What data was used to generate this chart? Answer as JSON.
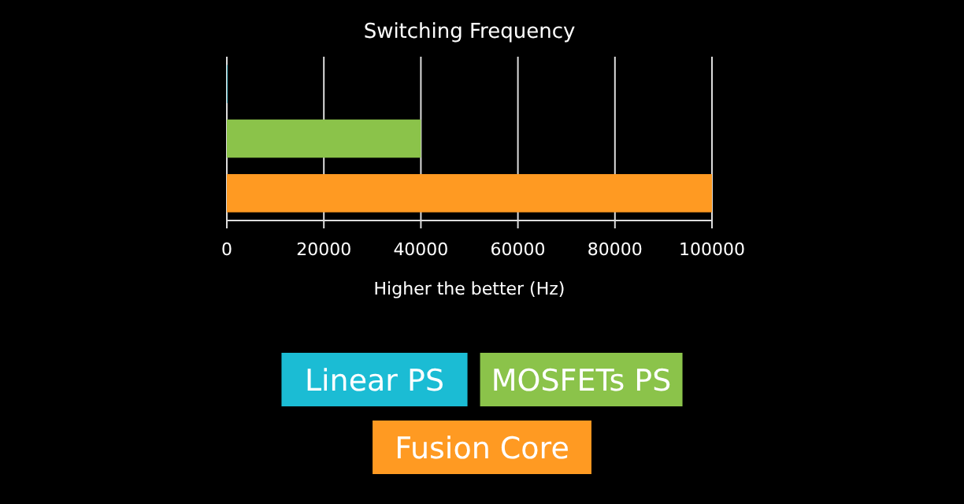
{
  "chart_data": {
    "type": "bar",
    "orientation": "horizontal",
    "title": "Switching Frequency",
    "xlabel": "Higher the better (Hz)",
    "categories": [
      null,
      null,
      null
    ],
    "series": [
      {
        "name": "Linear PS",
        "color": "#1bbcd4",
        "values": [
          100,
          null,
          null
        ]
      },
      {
        "name": "MOSFETs PS",
        "color": "#8bc34a",
        "values": [
          null,
          40000,
          null
        ]
      },
      {
        "name": "Fusion Core",
        "color": "#ff9a22",
        "values": [
          null,
          null,
          100000
        ]
      }
    ],
    "xlim": [
      0,
      100000
    ],
    "xticks": [
      0,
      20000,
      40000,
      60000,
      80000,
      100000
    ],
    "grid": "x",
    "legend": "bottom"
  }
}
